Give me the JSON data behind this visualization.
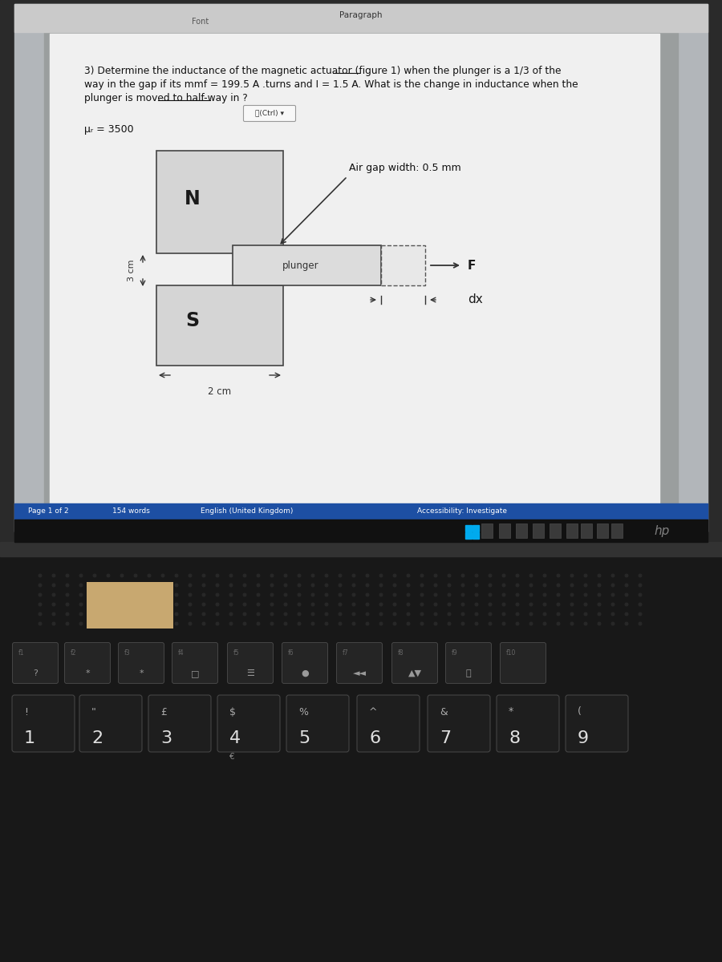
{
  "screen_bg": "#b5b9bc",
  "doc_bg": "#e8e8e8",
  "page_bg": "#f2f2f2",
  "toolbar_bg": "#d0d0d0",
  "keyboard_bg": "#1c1c1c",
  "bezel_bg": "#2a2a2a",
  "hinge_bg": "#383838",
  "taskbar_bg": "#1a1a1a",
  "statusbar_bg": "#1f4fa0",
  "question_text_line1": "3) Determine the inductance of the magnetic actuator (figure 1) when the plunger is a 1/3 of the",
  "question_text_line2": "way in the gap if its mmf = 199.5 A .turns and I = 1.5 A. What is the change in inductance when the",
  "question_text_line3": "plunger is moved to half-way in ?",
  "mu_label": "μᵣ = 3500",
  "air_gap_label": "Air gap width: 0.5 mm",
  "plunger_label": "plunger",
  "N_label": "N",
  "S_label": "S",
  "F_label": "F",
  "dx_label": "dx",
  "dim_3cm": "3 cm",
  "dim_2cm": "2 cm",
  "paragraph_label": "Paragraph",
  "font_label": "Font",
  "ctrl_label": "⎘(Ctrl) ▾",
  "page_info": "Page 1 of 2",
  "words_info": "154 words",
  "lang_info": "English (United Kingdom)",
  "access_info": "Accessibility: Investigate",
  "fkey_labels": [
    "f1\n?",
    "f2\n*",
    "f3\n*",
    "f4\n□",
    "f5\n☰",
    "f6\n●",
    "f7\n◄",
    "f8\n▲",
    "f9\n⏮",
    "f10\n"
  ],
  "num_key_labels": [
    "!\n1",
    "“”\n2",
    "£\n3",
    "$\n4",
    "%\n5",
    "^\n6",
    "&\n7",
    "*\n8",
    "(\n9"
  ],
  "num_key_sub": [
    "",
    "",
    "",
    "€",
    "",
    "",
    "",
    "",
    ""
  ],
  "speaker_dot_color": "#252525",
  "sticky_note_color": "#c8a96e",
  "hp_color": "#888888"
}
